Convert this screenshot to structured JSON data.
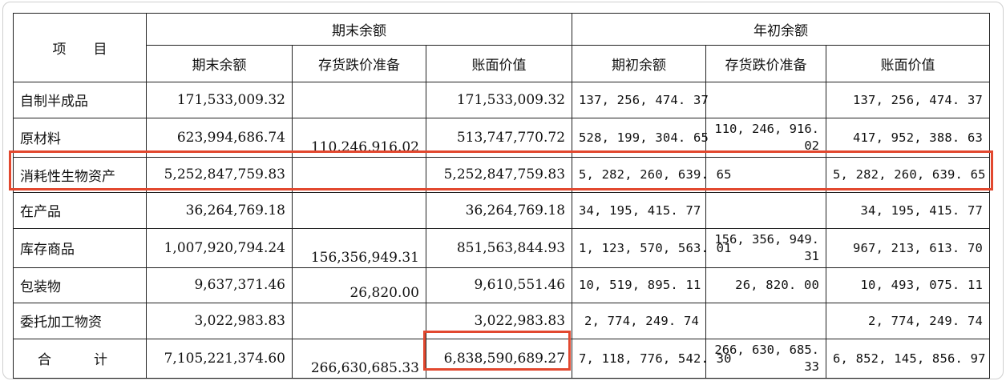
{
  "table": {
    "header_group": {
      "item": "项　　目",
      "end_balance": "期末余额",
      "begin_balance": "年初余额"
    },
    "sub_headers": [
      "期末余额",
      "存货跌价准备",
      "账面价值",
      "期初余额",
      "存货跌价准备",
      "账面价值"
    ],
    "rows": [
      {
        "label": "自制半成品",
        "c1": "171,533,009.32",
        "c2": "",
        "c3": "171,533,009.32",
        "c4": "137, 256, 474. 37",
        "c5": "",
        "c6": "137, 256, 474. 37"
      },
      {
        "label": "原材料",
        "c1": "623,994,686.74",
        "c2": "110,246,916.02",
        "c3": "513,747,770.72",
        "c4": "528, 199, 304. 65",
        "c5": "110, 246, 916. 02",
        "c6": "417, 952, 388. 63"
      },
      {
        "label": "消耗性生物资产",
        "c1": "5,252,847,759.83",
        "c2": "",
        "c3": "5,252,847,759.83",
        "c4": "5, 282, 260, 639. 65",
        "c5": "",
        "c6": "5, 282, 260, 639. 65"
      },
      {
        "label": "在产品",
        "c1": "36,264,769.18",
        "c2": "",
        "c3": "36,264,769.18",
        "c4": "34, 195, 415. 77",
        "c5": "",
        "c6": "34, 195, 415. 77"
      },
      {
        "label": "库存商品",
        "c1": "1,007,920,794.24",
        "c2": "156,356,949.31",
        "c3": "851,563,844.93",
        "c4": "1, 123, 570, 563. 01",
        "c5": "156, 356, 949. 31",
        "c6": "967, 213, 613. 70"
      },
      {
        "label": "包装物",
        "c1": "9,637,371.46",
        "c2": "26,820.00",
        "c3": "9,610,551.46",
        "c4": "10, 519, 895. 11",
        "c5": "26, 820. 00",
        "c6": "10, 493, 075. 11"
      },
      {
        "label": "委托加工物资",
        "c1": "3,022,983.83",
        "c2": "",
        "c3": "3,022,983.83",
        "c4": "2, 774, 249. 74",
        "c5": "",
        "c6": "2, 774, 249. 74"
      },
      {
        "label": "合　计",
        "c1": "7,105,221,374.60",
        "c2": "266,630,685.33",
        "c3": "6,838,590,689.27",
        "c4": "7, 118, 776, 542. 30",
        "c5": "266, 630, 685. 33",
        "c6": "6, 852, 145, 856. 97"
      }
    ]
  },
  "highlight_color": "#e2482f"
}
